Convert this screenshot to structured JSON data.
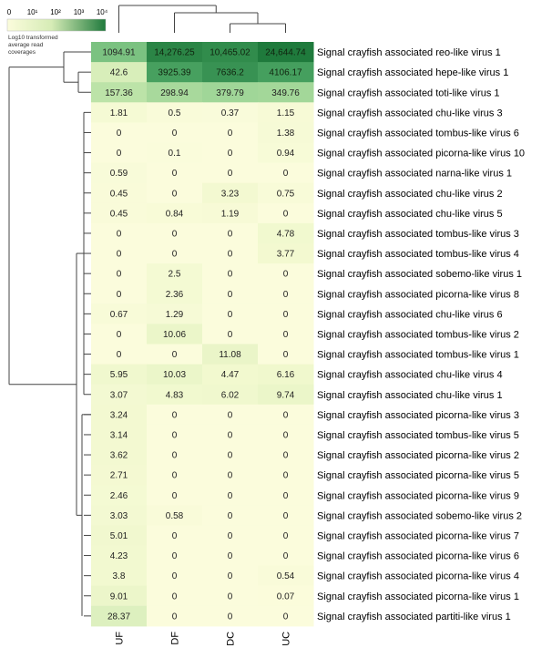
{
  "chart_data": {
    "type": "heatmap",
    "value_transform": "log10",
    "legend": {
      "title_lines": [
        "Log10 transformed",
        "average read",
        "coverages"
      ],
      "ticks": [
        "0",
        "10¹",
        "10²",
        "10³",
        "10⁴"
      ],
      "color_low": "#fbfcdc",
      "color_high": "#1f7a3c",
      "placement": "top-left"
    },
    "columns": [
      "UF",
      "DF",
      "DC",
      "UC"
    ],
    "rows": [
      {
        "label": "Signal crayfish associated reo-like virus 1",
        "values": [
          "1094.91",
          "14,276.25",
          "10,465.02",
          "24,644.74"
        ]
      },
      {
        "label": "Signal crayfish associated hepe-like virus 1",
        "values": [
          "42.6",
          "3925.39",
          "7636.2",
          "4106.17"
        ]
      },
      {
        "label": "Signal crayfish associated toti-like virus 1",
        "values": [
          "157.36",
          "298.94",
          "379.79",
          "349.76"
        ]
      },
      {
        "label": "Signal crayfish associated chu-like virus 3",
        "values": [
          "1.81",
          "0.5",
          "0.37",
          "1.15"
        ]
      },
      {
        "label": "Signal crayfish associated tombus-like virus 6",
        "values": [
          "0",
          "0",
          "0",
          "1.38"
        ]
      },
      {
        "label": "Signal crayfish associated picorna-like virus 10",
        "values": [
          "0",
          "0.1",
          "0",
          "0.94"
        ]
      },
      {
        "label": "Signal crayfish associated narna-like virus 1",
        "values": [
          "0.59",
          "0",
          "0",
          "0"
        ]
      },
      {
        "label": "Signal crayfish associated chu-like virus 2",
        "values": [
          "0.45",
          "0",
          "3.23",
          "0.75"
        ]
      },
      {
        "label": "Signal crayfish associated chu-like virus 5",
        "values": [
          "0.45",
          "0.84",
          "1.19",
          "0"
        ]
      },
      {
        "label": "Signal crayfish associated tombus-like virus 3",
        "values": [
          "0",
          "0",
          "0",
          "4.78"
        ]
      },
      {
        "label": "Signal crayfish associated tombus-like virus 4",
        "values": [
          "0",
          "0",
          "0",
          "3.77"
        ]
      },
      {
        "label": "Signal crayfish associated sobemo-like virus 1",
        "values": [
          "0",
          "2.5",
          "0",
          "0"
        ]
      },
      {
        "label": "Signal crayfish associated picorna-like virus 8",
        "values": [
          "0",
          "2.36",
          "0",
          "0"
        ]
      },
      {
        "label": "Signal crayfish associated chu-like virus 6",
        "values": [
          "0.67",
          "1.29",
          "0",
          "0"
        ]
      },
      {
        "label": "Signal crayfish associated tombus-like virus 2",
        "values": [
          "0",
          "10.06",
          "0",
          "0"
        ]
      },
      {
        "label": "Signal crayfish associated tombus-like virus 1",
        "values": [
          "0",
          "0",
          "11.08",
          "0"
        ]
      },
      {
        "label": "Signal crayfish associated chu-like virus 4",
        "values": [
          "5.95",
          "10.03",
          "4.47",
          "6.16"
        ]
      },
      {
        "label": "Signal crayfish associated chu-like virus 1",
        "values": [
          "3.07",
          "4.83",
          "6.02",
          "9.74"
        ]
      },
      {
        "label": "Signal crayfish associated picorna-like virus 3",
        "values": [
          "3.24",
          "0",
          "0",
          "0"
        ]
      },
      {
        "label": "Signal crayfish associated tombus-like virus 5",
        "values": [
          "3.14",
          "0",
          "0",
          "0"
        ]
      },
      {
        "label": "Signal crayfish associated picorna-like virus 2",
        "values": [
          "3.62",
          "0",
          "0",
          "0"
        ]
      },
      {
        "label": "Signal crayfish associated picorna-like virus 5",
        "values": [
          "2.71",
          "0",
          "0",
          "0"
        ]
      },
      {
        "label": "Signal crayfish associated picorna-like virus 9",
        "values": [
          "2.46",
          "0",
          "0",
          "0"
        ]
      },
      {
        "label": "Signal crayfish associated sobemo-like virus 2",
        "values": [
          "3.03",
          "0.58",
          "0",
          "0"
        ]
      },
      {
        "label": "Signal crayfish associated picorna-like virus 7",
        "values": [
          "5.01",
          "0",
          "0",
          "0"
        ]
      },
      {
        "label": "Signal crayfish associated picorna-like virus 6",
        "values": [
          "4.23",
          "0",
          "0",
          "0"
        ]
      },
      {
        "label": "Signal crayfish associated picorna-like virus 4",
        "values": [
          "3.8",
          "0",
          "0",
          "0.54"
        ]
      },
      {
        "label": "Signal crayfish associated picorna-like virus 1",
        "values": [
          "9.01",
          "0",
          "0",
          "0.07"
        ]
      },
      {
        "label": "Signal crayfish associated partiti-like virus 1",
        "values": [
          "28.37",
          "0",
          "0",
          "0"
        ]
      }
    ],
    "dendrograms": {
      "columns": true,
      "rows": true,
      "line_color": "#444444"
    }
  }
}
